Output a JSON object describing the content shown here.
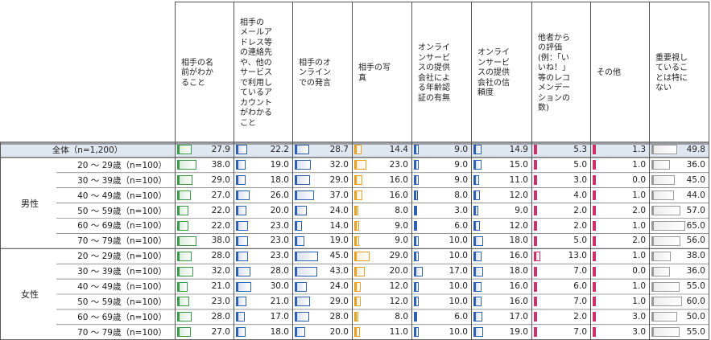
{
  "chart_data": {
    "type": "table",
    "columns": [
      "相手の名\n前がわか\nること",
      "相手の\nメールア\nドレス等\nの連絡先\nや、他の\nサービス\nで利用し\nているア\nカウント\nがわかる\nこと",
      "相手のオ\nンライン\nでの発言",
      "相手の写\n真",
      "オンライ\nンサービ\nスの提供\n会社によ\nる年齢認\n証の有無",
      "オンライ\nンサービ\nスの提供\n会社の信\n頼度",
      "他者から\nの評価\n(例：「い\nいね！」\n等のレコ\nメンデー\nションの\n数)",
      "その他",
      "重要視し\nているこ\nとは特に\nない"
    ],
    "groups": [
      {
        "label": "",
        "rows": [
          0
        ]
      },
      {
        "label": "男性",
        "rows": [
          1,
          2,
          3,
          4,
          5,
          6
        ]
      },
      {
        "label": "女性",
        "rows": [
          7,
          8,
          9,
          10,
          11,
          12
        ]
      }
    ],
    "rows": [
      {
        "label": "全体（n=1,200）",
        "values": [
          27.9,
          22.2,
          28.7,
          14.4,
          9.0,
          14.9,
          5.3,
          1.3,
          49.8
        ]
      },
      {
        "label": "20 ～ 29歳（n=100）",
        "values": [
          38.0,
          19.0,
          32.0,
          23.0,
          9.0,
          15.0,
          5.0,
          1.0,
          36.0
        ]
      },
      {
        "label": "30 ～ 39歳（n=100）",
        "values": [
          29.0,
          18.0,
          29.0,
          16.0,
          9.0,
          11.0,
          3.0,
          0.0,
          45.0
        ]
      },
      {
        "label": "40 ～ 49歳（n=100）",
        "values": [
          27.0,
          26.0,
          37.0,
          16.0,
          8.0,
          12.0,
          4.0,
          1.0,
          44.0
        ]
      },
      {
        "label": "50 ～ 59歳（n=100）",
        "values": [
          22.0,
          20.0,
          24.0,
          8.0,
          3.0,
          9.0,
          2.0,
          2.0,
          57.0
        ]
      },
      {
        "label": "60 ～ 69歳（n=100）",
        "values": [
          22.0,
          23.0,
          14.0,
          9.0,
          6.0,
          12.0,
          2.0,
          1.0,
          65.0
        ]
      },
      {
        "label": "70 ～ 79歳（n=100）",
        "values": [
          38.0,
          23.0,
          19.0,
          9.0,
          10.0,
          18.0,
          5.0,
          2.0,
          56.0
        ]
      },
      {
        "label": "20 ～ 29歳（n=100）",
        "values": [
          28.0,
          23.0,
          45.0,
          29.0,
          10.0,
          16.0,
          13.0,
          1.0,
          38.0
        ]
      },
      {
        "label": "30 ～ 39歳（n=100）",
        "values": [
          32.0,
          28.0,
          43.0,
          20.0,
          17.0,
          18.0,
          7.0,
          0.0,
          36.0
        ]
      },
      {
        "label": "40 ～ 49歳（n=100）",
        "values": [
          21.0,
          30.0,
          24.0,
          12.0,
          10.0,
          16.0,
          6.0,
          1.0,
          55.0
        ]
      },
      {
        "label": "50 ～ 59歳（n=100）",
        "values": [
          23.0,
          21.0,
          29.0,
          12.0,
          10.0,
          16.0,
          7.0,
          1.0,
          60.0
        ]
      },
      {
        "label": "60 ～ 69歳（n=100）",
        "values": [
          28.0,
          17.0,
          28.0,
          8.0,
          6.0,
          17.0,
          2.0,
          3.0,
          50.0
        ]
      },
      {
        "label": "70 ～ 79歳（n=100）",
        "values": [
          27.0,
          18.0,
          20.0,
          11.0,
          10.0,
          19.0,
          7.0,
          3.0,
          55.0
        ]
      }
    ],
    "bar_colors": [
      "#3a9a4a",
      "#2f5fb0",
      "#2f5fb0",
      "#e8a020",
      "#2f5fb0",
      "#2f5fb0",
      "#d0306a",
      "#d0306a",
      "#9a9a9a"
    ],
    "highlight_row_color": "#dfe7f1",
    "grid": true
  }
}
